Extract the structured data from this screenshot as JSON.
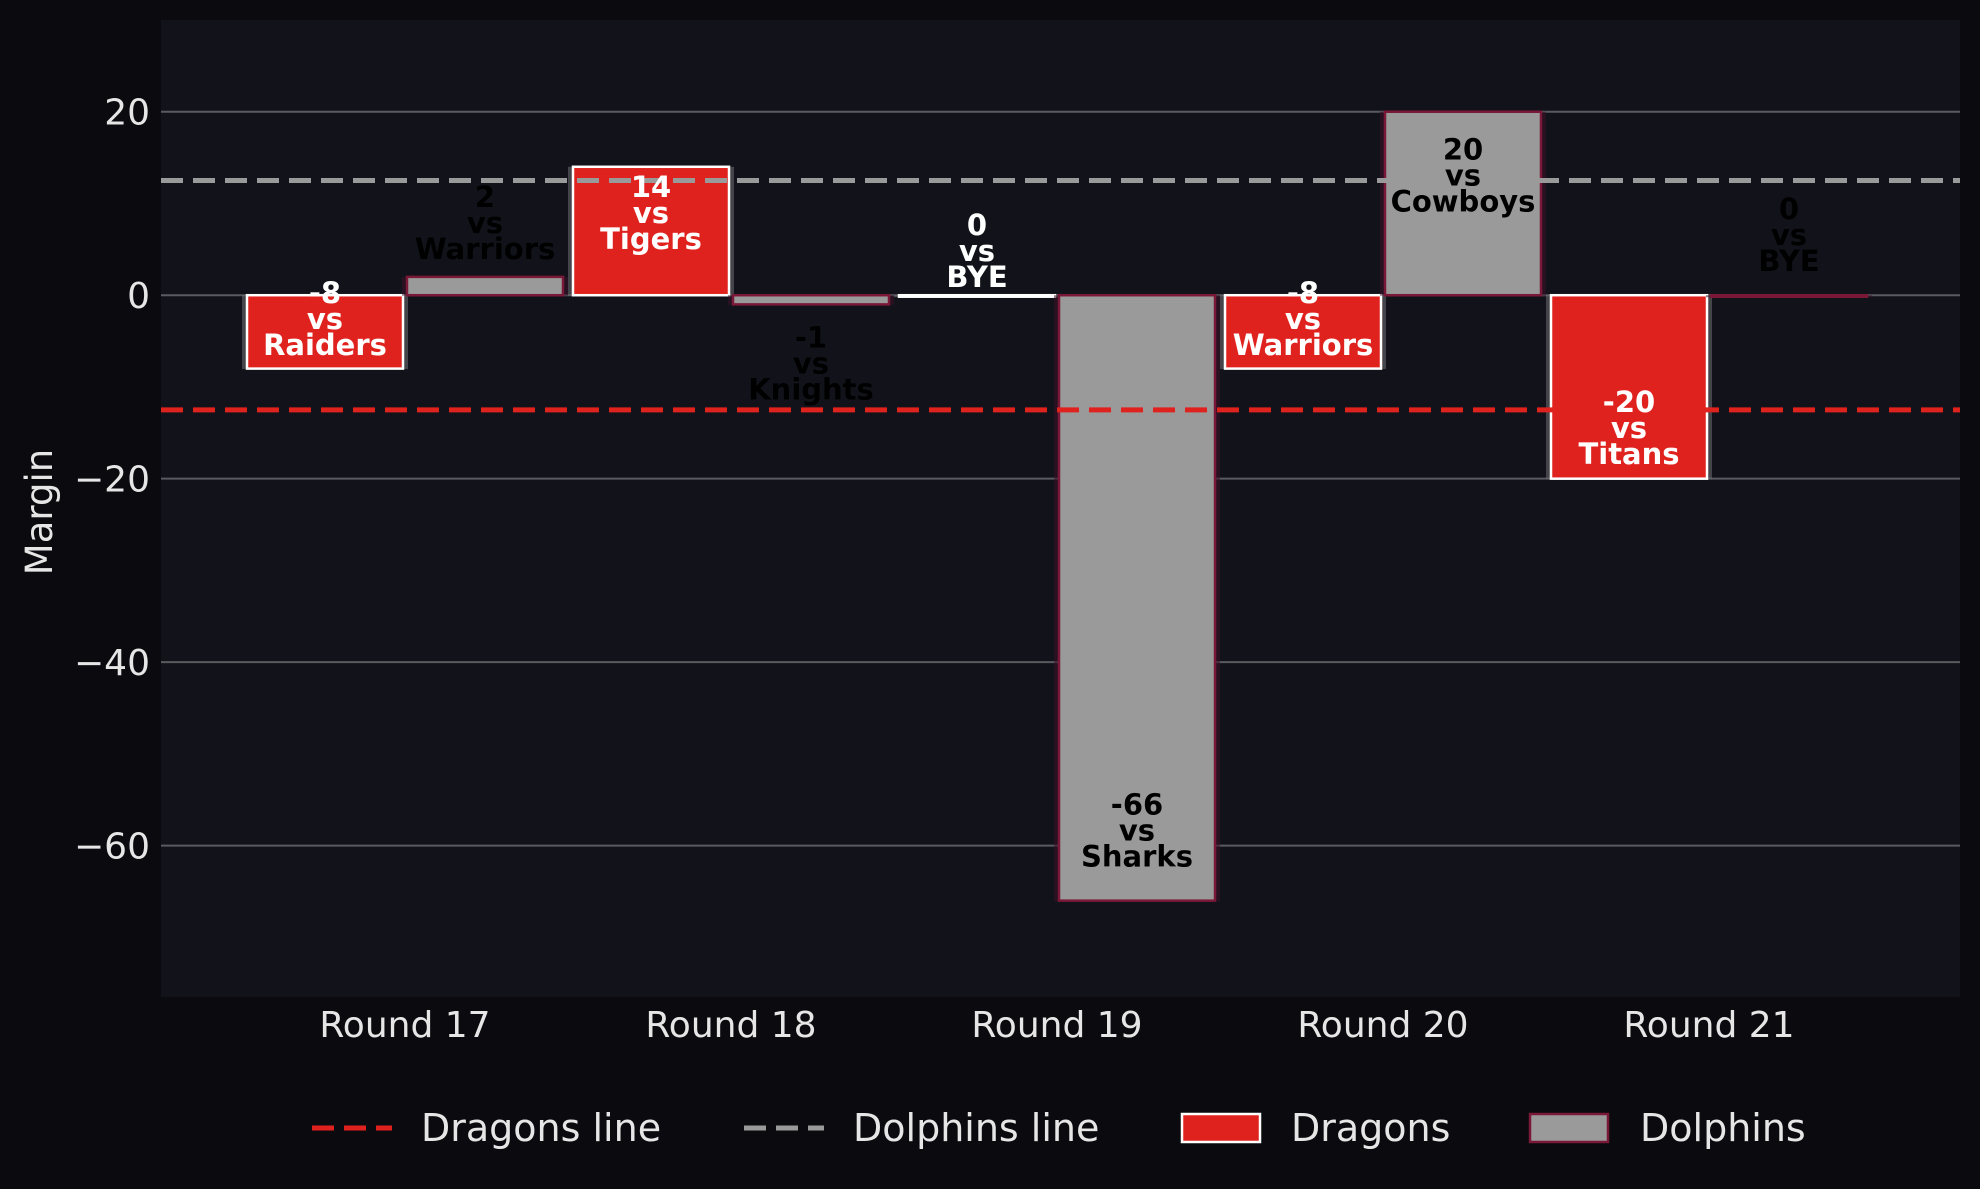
{
  "chart_data": {
    "type": "bar",
    "title": "",
    "xlabel": "",
    "ylabel": "Margin",
    "ylim": [
      -76.5,
      30
    ],
    "yticks": [
      20,
      0,
      -20,
      -40,
      -60
    ],
    "ytick_labels": [
      "20",
      "0",
      "−20",
      "−40",
      "−60"
    ],
    "categories": [
      "Round 17",
      "Round 18",
      "Round 19",
      "Round 20",
      "Round 21"
    ],
    "grid": "horizontal",
    "legend_position": "bottom",
    "series": [
      {
        "name": "Dragons",
        "color": "#e0221e",
        "edge_color": "#ffffff",
        "label_color": "#ffffff",
        "values": [
          -8,
          14,
          0,
          -8,
          -20
        ],
        "opponents": [
          "Raiders",
          "Tigers",
          "BYE",
          "Warriors",
          "Titans"
        ],
        "labels": [
          [
            "-8",
            "vs",
            "Raiders"
          ],
          [
            "14",
            "vs",
            "Tigers"
          ],
          [
            "0",
            "vs",
            "BYE"
          ],
          [
            "-8",
            "vs",
            "Warriors"
          ],
          [
            "-20",
            "vs",
            "Titans"
          ]
        ]
      },
      {
        "name": "Dolphins",
        "color": "#9a9a9a",
        "edge_color": "#7a1838",
        "label_color": "#000000",
        "values": [
          2,
          -1,
          -66,
          20,
          0
        ],
        "opponents": [
          "Warriors",
          "Knights",
          "Sharks",
          "Cowboys",
          "BYE"
        ],
        "labels": [
          [
            "2",
            "vs",
            "Warriors"
          ],
          [
            "-1",
            "vs",
            "Knights"
          ],
          [
            "-66",
            "vs",
            "Sharks"
          ],
          [
            "20",
            "vs",
            "Cowboys"
          ],
          [
            "0",
            "vs",
            "BYE"
          ]
        ]
      }
    ],
    "reference_lines": [
      {
        "name": "Dragons line",
        "value": -12.5,
        "color": "#e0221e",
        "style": "dashed"
      },
      {
        "name": "Dolphins line",
        "value": 12.5,
        "color": "#9a9a9a",
        "style": "dashed"
      }
    ],
    "legend": [
      {
        "label": "Dragons line",
        "kind": "line",
        "color": "#e0221e"
      },
      {
        "label": "Dolphins line",
        "kind": "line",
        "color": "#9a9a9a"
      },
      {
        "label": "Dragons",
        "kind": "patch",
        "color": "#e0221e",
        "edge": "#ffffff"
      },
      {
        "label": "Dolphins",
        "kind": "patch",
        "color": "#9a9a9a",
        "edge": "#7a1838"
      }
    ]
  }
}
